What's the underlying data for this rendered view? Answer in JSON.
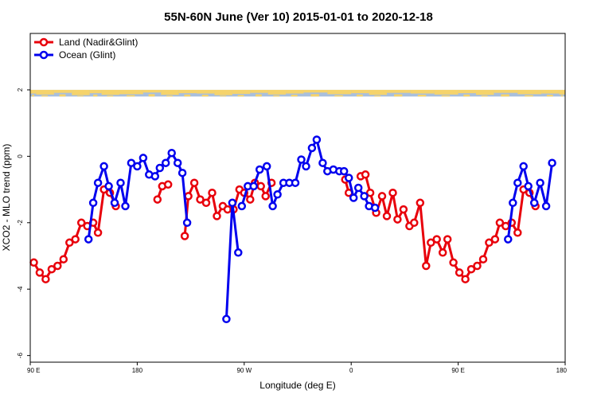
{
  "chart_data": {
    "type": "line",
    "title": "55N-60N June (Ver 10)   2015-01-01 to 2020-12-18",
    "xlabel": "Longitude (deg E)",
    "ylabel": "XCO2 - MLO trend (ppm)",
    "x_ticks": [
      {
        "value": 90,
        "label": "90 E"
      },
      {
        "value": 180,
        "label": "180"
      },
      {
        "value": 270,
        "label": "90 W"
      },
      {
        "value": 360,
        "label": "0"
      },
      {
        "value": 450,
        "label": "90 E"
      },
      {
        "value": 540,
        "label": "180"
      }
    ],
    "y_ticks": [
      {
        "value": -6,
        "label": "-6"
      },
      {
        "value": -4,
        "label": "-4"
      },
      {
        "value": -2,
        "label": "-2"
      },
      {
        "value": 0,
        "label": "0"
      },
      {
        "value": 2,
        "label": "2"
      }
    ],
    "xlim": [
      90,
      540
    ],
    "ylim": [
      -6.2,
      3.7
    ],
    "grid": false,
    "legend_position": "top-left",
    "map_strip": {
      "y_range": [
        1.8,
        2.0
      ],
      "land_color": "#f5d36b",
      "ocean_color": "#a9bfdc"
    },
    "series": [
      {
        "name": "Land (Nadir&Glint)",
        "color": "#e8000b",
        "segments": [
          [
            [
              93,
              -3.2
            ],
            [
              98,
              -3.5
            ],
            [
              103,
              -3.7
            ],
            [
              108,
              -3.4
            ],
            [
              113,
              -3.3
            ],
            [
              118,
              -3.1
            ],
            [
              123,
              -2.6
            ],
            [
              128,
              -2.5
            ],
            [
              133,
              -2.0
            ],
            [
              138,
              -2.1
            ],
            [
              143,
              -2.0
            ],
            [
              147,
              -2.3
            ],
            [
              152,
              -1.0
            ],
            [
              157,
              -1.1
            ],
            [
              162,
              -1.5
            ]
          ],
          [
            [
              197,
              -1.3
            ],
            [
              201,
              -0.9
            ],
            [
              206,
              -0.85
            ]
          ],
          [
            [
              220,
              -2.4
            ],
            [
              223,
              -1.2
            ],
            [
              228,
              -0.8
            ],
            [
              233,
              -1.3
            ],
            [
              238,
              -1.4
            ],
            [
              243,
              -1.1
            ],
            [
              247,
              -1.8
            ],
            [
              252,
              -1.5
            ],
            [
              256,
              -1.6
            ],
            [
              261,
              -1.6
            ],
            [
              266,
              -1.0
            ],
            [
              270,
              -1.1
            ],
            [
              275,
              -1.3
            ],
            [
              279,
              -0.8
            ],
            [
              284,
              -0.9
            ],
            [
              288,
              -1.2
            ],
            [
              293,
              -0.8
            ]
          ],
          [
            [
              355,
              -0.7
            ],
            [
              358,
              -1.1
            ]
          ],
          [
            [
              368,
              -0.6
            ],
            [
              372,
              -0.55
            ],
            [
              376,
              -1.1
            ],
            [
              381,
              -1.7
            ],
            [
              386,
              -1.2
            ],
            [
              390,
              -1.8
            ],
            [
              395,
              -1.1
            ],
            [
              399,
              -1.9
            ],
            [
              404,
              -1.6
            ],
            [
              409,
              -2.1
            ],
            [
              413,
              -2.0
            ],
            [
              418,
              -1.4
            ],
            [
              423,
              -3.3
            ],
            [
              427,
              -2.6
            ],
            [
              432,
              -2.5
            ],
            [
              437,
              -2.9
            ],
            [
              441,
              -2.5
            ],
            [
              446,
              -3.2
            ],
            [
              451,
              -3.5
            ],
            [
              456,
              -3.7
            ],
            [
              461,
              -3.4
            ],
            [
              466,
              -3.3
            ],
            [
              471,
              -3.1
            ],
            [
              476,
              -2.6
            ],
            [
              481,
              -2.5
            ],
            [
              485,
              -2.0
            ],
            [
              490,
              -2.1
            ],
            [
              495,
              -2.0
            ],
            [
              500,
              -2.3
            ],
            [
              505,
              -1.0
            ],
            [
              510,
              -1.1
            ],
            [
              515,
              -1.5
            ]
          ]
        ]
      },
      {
        "name": "Ocean (Glint)",
        "color": "#0000ee",
        "segments": [
          [
            [
              139,
              -2.5
            ],
            [
              143,
              -1.4
            ],
            [
              147,
              -0.8
            ],
            [
              152,
              -0.3
            ],
            [
              156,
              -0.9
            ],
            [
              161,
              -1.4
            ],
            [
              166,
              -0.8
            ],
            [
              170,
              -1.5
            ],
            [
              175,
              -0.2
            ],
            [
              180,
              -0.3
            ],
            [
              185,
              -0.05
            ],
            [
              190,
              -0.55
            ],
            [
              195,
              -0.6
            ],
            [
              199,
              -0.35
            ],
            [
              204,
              -0.2
            ],
            [
              209,
              0.1
            ],
            [
              214,
              -0.2
            ],
            [
              218,
              -0.5
            ],
            [
              222,
              -2.0
            ]
          ],
          [
            [
              255,
              -4.9
            ],
            [
              260,
              -1.4
            ],
            [
              265,
              -2.9
            ]
          ],
          [
            [
              268,
              -1.5
            ],
            [
              273,
              -0.9
            ],
            [
              278,
              -0.9
            ],
            [
              283,
              -0.4
            ]
          ],
          [
            [
              289,
              -0.3
            ],
            [
              294,
              -1.5
            ],
            [
              298,
              -1.15
            ],
            [
              303,
              -0.8
            ],
            [
              308,
              -0.8
            ],
            [
              313,
              -0.8
            ],
            [
              318,
              -0.1
            ],
            [
              322,
              -0.3
            ],
            [
              327,
              0.25
            ],
            [
              331,
              0.5
            ],
            [
              336,
              -0.2
            ],
            [
              340,
              -0.45
            ],
            [
              345,
              -0.4
            ],
            [
              350,
              -0.45
            ],
            [
              354,
              -0.45
            ],
            [
              358,
              -0.65
            ],
            [
              362,
              -1.25
            ],
            [
              366,
              -0.95
            ],
            [
              371,
              -1.2
            ],
            [
              375,
              -1.5
            ],
            [
              380,
              -1.55
            ]
          ],
          [
            [
              492,
              -2.5
            ],
            [
              496,
              -1.4
            ],
            [
              500,
              -0.8
            ],
            [
              505,
              -0.3
            ],
            [
              509,
              -0.9
            ],
            [
              514,
              -1.4
            ],
            [
              519,
              -0.8
            ],
            [
              524,
              -1.5
            ],
            [
              529,
              -0.2
            ]
          ]
        ]
      }
    ]
  }
}
